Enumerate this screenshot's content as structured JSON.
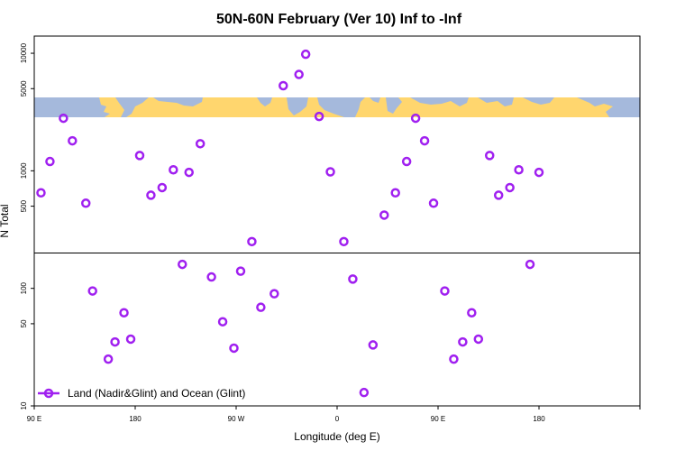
{
  "chart_data": {
    "type": "scatter",
    "title": "50N-60N February (Ver 10)   Inf to -Inf",
    "xlabel": "Longitude (deg E)",
    "ylabel": "N Total",
    "xlim": [
      -90,
      180
    ],
    "ylim": [
      10,
      14000
    ],
    "yscale": "log",
    "threshold_line": 200,
    "map_band_latitude": "50N-60N",
    "x_ticks": [
      {
        "value": -90,
        "label": "90 E"
      },
      {
        "value": -45,
        "label": "180"
      },
      {
        "value": 0,
        "label": "90 W"
      },
      {
        "value": 45,
        "label": "0"
      },
      {
        "value": 90,
        "label": "90 E"
      },
      {
        "value": 135,
        "label": "180"
      }
    ],
    "y_ticks": [
      {
        "value": 10,
        "label": "10"
      },
      {
        "value": 50,
        "label": "50"
      },
      {
        "value": 100,
        "label": "100"
      },
      {
        "value": 500,
        "label": "500"
      },
      {
        "value": 1000,
        "label": "1000"
      },
      {
        "value": 5000,
        "label": "5000"
      },
      {
        "value": 10000,
        "label": "10000"
      }
    ],
    "legend": {
      "label": "Land (Nadir&Glint) and Ocean (Glint)",
      "position": "bottom-left"
    },
    "series": [
      {
        "name": "Land (Nadir&Glint) and Ocean (Glint)",
        "color": "#a020f0",
        "x": [
          -87,
          -83,
          -77,
          -73,
          -67,
          -64,
          -57,
          -54,
          -50,
          -47,
          -43,
          -38,
          -33,
          -28,
          -24,
          -21,
          -16,
          -11,
          -6,
          -1,
          2,
          7,
          11,
          17,
          21,
          28,
          31,
          37,
          42,
          48,
          52,
          57,
          61,
          66,
          71,
          76,
          80,
          84,
          88,
          93,
          97,
          101,
          105,
          108,
          113,
          117,
          122,
          126,
          131,
          135
        ],
        "y": [
          650,
          1200,
          2800,
          1800,
          530,
          95,
          25,
          35,
          62,
          37,
          1350,
          620,
          720,
          1020,
          160,
          970,
          1700,
          125,
          52,
          31,
          140,
          250,
          69,
          90,
          5300,
          6600,
          9800,
          2900,
          980,
          250,
          120,
          13,
          33,
          420,
          650,
          1200,
          2800,
          1800,
          530,
          95,
          25,
          35,
          62,
          37,
          1350,
          620,
          720,
          1020,
          160,
          970
        ]
      }
    ]
  }
}
